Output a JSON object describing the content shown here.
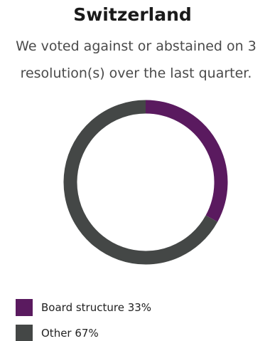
{
  "header": {
    "title": "Switzerland",
    "subtitle": "We voted against or abstained on 3 resolution(s) over the last quarter."
  },
  "chart_data": {
    "type": "pie",
    "style": "donut",
    "categories": [
      "Board structure",
      "Other"
    ],
    "values": [
      33,
      67
    ],
    "colors": [
      "#5a1a5f",
      "#444746"
    ],
    "legend_labels": [
      "Board structure 33%",
      "Other 67%"
    ],
    "legend_position": "bottom-left"
  }
}
